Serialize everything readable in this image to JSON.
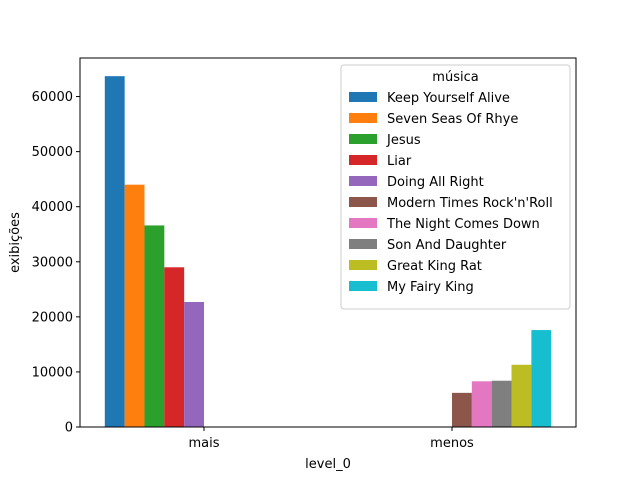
{
  "chart_data": {
    "type": "bar",
    "categories": [
      "mais",
      "menos"
    ],
    "xlabel": "level_0",
    "ylabel": "exibições",
    "ylim": [
      0,
      67000
    ],
    "yticks": [
      0,
      10000,
      20000,
      30000,
      40000,
      50000,
      60000
    ],
    "ytick_labels": [
      "0",
      "10000",
      "20000",
      "30000",
      "40000",
      "50000",
      "60000"
    ],
    "grid": false,
    "legend": {
      "title": "música",
      "placement": "top-right"
    },
    "series": [
      {
        "name": "Keep Yourself Alive",
        "color": "#1f77b4",
        "values": [
          63700,
          null
        ]
      },
      {
        "name": "Seven Seas Of Rhye",
        "color": "#ff7f0e",
        "values": [
          44000,
          null
        ]
      },
      {
        "name": "Jesus",
        "color": "#2ca02c",
        "values": [
          36600,
          null
        ]
      },
      {
        "name": "Liar",
        "color": "#d62728",
        "values": [
          29000,
          null
        ]
      },
      {
        "name": "Doing All Right",
        "color": "#9467bd",
        "values": [
          22700,
          null
        ]
      },
      {
        "name": "Modern Times Rock'n'Roll",
        "color": "#8c564b",
        "values": [
          null,
          6200
        ]
      },
      {
        "name": "The Night Comes Down",
        "color": "#e377c2",
        "values": [
          null,
          8300
        ]
      },
      {
        "name": "Son And Daughter",
        "color": "#7f7f7f",
        "values": [
          null,
          8400
        ]
      },
      {
        "name": "Great King Rat",
        "color": "#bcbd22",
        "values": [
          null,
          11300
        ]
      },
      {
        "name": "My Fairy King",
        "color": "#17becf",
        "values": [
          null,
          17600
        ]
      }
    ]
  }
}
